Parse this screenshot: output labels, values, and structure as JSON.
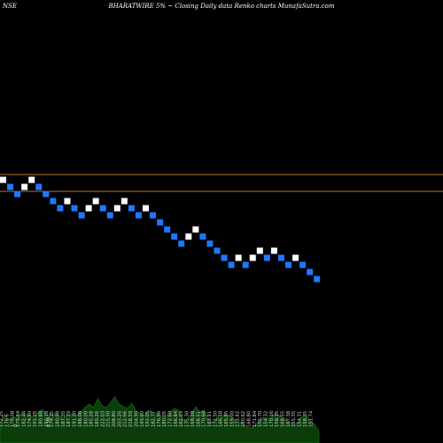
{
  "header": {
    "exchange": "NSE",
    "title": "BHARATWIRE 5% ~ Closing Daily data Renko charts MunafaSutra.com"
  },
  "colors": {
    "background": "#000000",
    "up_brick": "#ffffff",
    "down_brick": "#1e78ff",
    "reference_line": "#b8732e",
    "volume_fill": "#0a3d0a",
    "volume_edge": "#1f7a1f",
    "label": "#d0d0d0"
  },
  "chart_data": {
    "type": "renko",
    "brick_percent": 5,
    "bricks": [
      {
        "dir": "up",
        "level": 0
      },
      {
        "dir": "down",
        "level": 1
      },
      {
        "dir": "down",
        "level": 2
      },
      {
        "dir": "up",
        "level": 1
      },
      {
        "dir": "up",
        "level": 0
      },
      {
        "dir": "down",
        "level": 1
      },
      {
        "dir": "down",
        "level": 2
      },
      {
        "dir": "down",
        "level": 3
      },
      {
        "dir": "down",
        "level": 4
      },
      {
        "dir": "up",
        "level": 3
      },
      {
        "dir": "down",
        "level": 4
      },
      {
        "dir": "down",
        "level": 5
      },
      {
        "dir": "up",
        "level": 4
      },
      {
        "dir": "up",
        "level": 3
      },
      {
        "dir": "down",
        "level": 4
      },
      {
        "dir": "down",
        "level": 5
      },
      {
        "dir": "up",
        "level": 4
      },
      {
        "dir": "up",
        "level": 3
      },
      {
        "dir": "down",
        "level": 4
      },
      {
        "dir": "down",
        "level": 5
      },
      {
        "dir": "up",
        "level": 4
      },
      {
        "dir": "down",
        "level": 5
      },
      {
        "dir": "down",
        "level": 6
      },
      {
        "dir": "down",
        "level": 7
      },
      {
        "dir": "down",
        "level": 8
      },
      {
        "dir": "down",
        "level": 9
      },
      {
        "dir": "up",
        "level": 8
      },
      {
        "dir": "up",
        "level": 7
      },
      {
        "dir": "down",
        "level": 8
      },
      {
        "dir": "down",
        "level": 9
      },
      {
        "dir": "down",
        "level": 10
      },
      {
        "dir": "down",
        "level": 11
      },
      {
        "dir": "down",
        "level": 12
      },
      {
        "dir": "up",
        "level": 11
      },
      {
        "dir": "down",
        "level": 12
      },
      {
        "dir": "up",
        "level": 11
      },
      {
        "dir": "up",
        "level": 10
      },
      {
        "dir": "down",
        "level": 11
      },
      {
        "dir": "up",
        "level": 10
      },
      {
        "dir": "down",
        "level": 11
      },
      {
        "dir": "down",
        "level": 12
      },
      {
        "dir": "up",
        "level": 11
      },
      {
        "dir": "down",
        "level": 12
      },
      {
        "dir": "down",
        "level": 13
      },
      {
        "dir": "down",
        "level": 14
      }
    ],
    "volume": [
      22,
      32,
      26,
      30,
      28,
      34,
      33,
      31,
      29,
      35,
      38,
      31,
      33,
      33,
      30,
      29,
      31,
      33,
      31,
      35,
      40,
      44,
      40,
      50,
      42,
      40,
      46,
      52,
      44,
      41,
      39,
      45,
      36,
      33,
      31,
      37,
      34,
      33,
      30,
      29,
      35,
      39,
      37,
      27,
      24,
      32,
      41,
      35,
      37,
      27,
      23,
      28,
      32,
      32,
      31,
      27,
      25,
      22,
      18,
      17,
      20,
      25,
      29,
      27,
      31,
      33,
      30,
      27,
      24,
      20,
      23,
      29,
      31,
      25,
      21,
      13
    ],
    "bottom_labels": [
      {
        "text": "172.25",
        "col": 0
      },
      {
        "text": "176.6",
        "col": 1
      },
      {
        "text": "179.38",
        "col": 2
      },
      {
        "text": "0",
        "col": 2.6
      },
      {
        "text": "179.84",
        "col": 3
      },
      {
        "text": "182.44",
        "col": 4
      },
      {
        "text": "174.90",
        "col": 5
      },
      {
        "text": "191.35",
        "col": 6
      },
      {
        "text": "180.88",
        "col": 7
      },
      {
        "text": "192.18",
        "col": 8
      },
      {
        "text": "6.96",
        "col": 8.4
      },
      {
        "text": "174.15",
        "col": 9
      },
      {
        "text": "180.98",
        "col": 10
      },
      {
        "text": "187.35",
        "col": 11
      },
      {
        "text": "187.39",
        "col": 12
      },
      {
        "text": "191.30",
        "col": 13
      },
      {
        "text": "188.08",
        "col": 14
      },
      {
        "text": "180.09",
        "col": 15
      },
      {
        "text": "185.28",
        "col": 16
      },
      {
        "text": "180.26",
        "col": 17
      },
      {
        "text": "222.03",
        "col": 18
      },
      {
        "text": "215.50",
        "col": 19
      },
      {
        "text": "208.80",
        "col": 20
      },
      {
        "text": "203.26",
        "col": 21
      },
      {
        "text": "212.66",
        "col": 22
      },
      {
        "text": "218.59",
        "col": 23
      },
      {
        "text": "204.90",
        "col": 24
      },
      {
        "text": "199.60",
        "col": 25
      },
      {
        "text": "192.05",
        "col": 26
      },
      {
        "text": "182.77",
        "col": 27
      },
      {
        "text": "176.56",
        "col": 28
      },
      {
        "text": "180.05",
        "col": 29
      },
      {
        "text": "172.60",
        "col": 30
      },
      {
        "text": "166.84",
        "col": 31
      },
      {
        "text": "162.03",
        "col": 32
      },
      {
        "text": "175.30",
        "col": 33
      },
      {
        "text": "168.28",
        "col": 34
      },
      {
        "text": "168.51",
        "col": 35
      },
      {
        "text": "170.68",
        "col": 36
      },
      {
        "text": "163.91",
        "col": 37
      },
      {
        "text": "172.50",
        "col": 38
      },
      {
        "text": "166.78",
        "col": 39
      },
      {
        "text": "165.85",
        "col": 40
      },
      {
        "text": "159.00",
        "col": 41
      },
      {
        "text": "171.42",
        "col": 42
      },
      {
        "text": "180.62",
        "col": 43
      },
      {
        "text": "168.80",
        "col": 44
      },
      {
        "text": "171.84",
        "col": 45
      },
      {
        "text": "156.70",
        "col": 46
      },
      {
        "text": "154.32",
        "col": 47
      },
      {
        "text": "170.16",
        "col": 48
      },
      {
        "text": "158.15",
        "col": 49
      },
      {
        "text": "168.55",
        "col": 50
      },
      {
        "text": "167.38",
        "col": 51
      },
      {
        "text": "165.35",
        "col": 52
      },
      {
        "text": "154.31",
        "col": 53
      },
      {
        "text": "158.35",
        "col": 54
      },
      {
        "text": "151.74",
        "col": 55
      }
    ]
  }
}
